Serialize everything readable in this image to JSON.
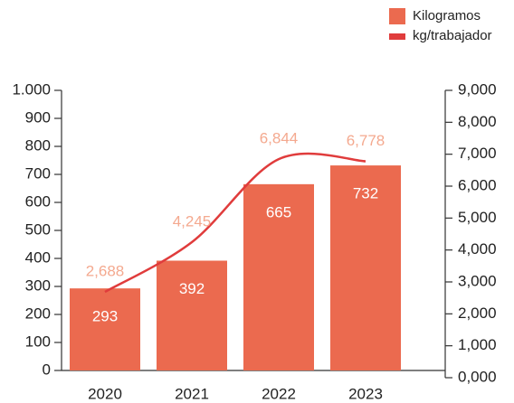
{
  "chart_data": {
    "type": "bar",
    "categories": [
      "2020",
      "2021",
      "2022",
      "2023"
    ],
    "series": [
      {
        "name": "Kilogramos",
        "type": "bar",
        "color": "#eb6a4f",
        "label_color": "#ffffff",
        "values": [
          293,
          392,
          665,
          732
        ]
      },
      {
        "name": "kg/trabajador",
        "type": "line",
        "axis": "y2",
        "color": "#e03c3c",
        "label_color": "#f4a98f",
        "values": [
          2688,
          4245,
          6844,
          6778
        ],
        "value_labels": [
          "2,688",
          "4,245",
          "6,844",
          "6,778"
        ]
      }
    ],
    "ylim": [
      0,
      1000
    ],
    "yticks": [
      0,
      100,
      200,
      300,
      400,
      500,
      600,
      700,
      800,
      900,
      {
        "value": 1000,
        "label": "1.000"
      }
    ],
    "y2lim": [
      0,
      9000
    ],
    "y2ticks": [
      {
        "value": 0,
        "label": "0,000"
      },
      {
        "value": 1000,
        "label": "1,000"
      },
      {
        "value": 2000,
        "label": "2,000"
      },
      {
        "value": 3000,
        "label": "3,000"
      },
      {
        "value": 4000,
        "label": "4,000"
      },
      {
        "value": 5000,
        "label": "5,000"
      },
      {
        "value": 6000,
        "label": "6,000"
      },
      {
        "value": 7000,
        "label": "7,000"
      },
      {
        "value": 8000,
        "label": "8,000"
      },
      {
        "value": 9000,
        "label": "9,000"
      }
    ],
    "legend": "top-right"
  }
}
